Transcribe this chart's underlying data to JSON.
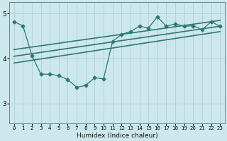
{
  "xlabel": "Humidex (Indice chaleur)",
  "xlim": [
    -0.5,
    23.5
  ],
  "ylim": [
    2.55,
    5.25
  ],
  "yticks": [
    3,
    4,
    5
  ],
  "xtick_labels": [
    "0",
    "1",
    "2",
    "3",
    "4",
    "5",
    "6",
    "7",
    "8",
    "9",
    "10",
    "11",
    "12",
    "13",
    "14",
    "15",
    "16",
    "17",
    "18",
    "19",
    "20",
    "21",
    "22",
    "23"
  ],
  "background_color": "#cce8ec",
  "grid_color": "#aacccc",
  "line_color": "#2d7a6e",
  "lines": [
    {
      "x": [
        0,
        1,
        2,
        3,
        4,
        5,
        6,
        7,
        8,
        9,
        10,
        11,
        12,
        13,
        14,
        15,
        16,
        17,
        18,
        19,
        20,
        21,
        22,
        23
      ],
      "y": [
        4.82,
        4.73,
        4.07,
        3.65,
        3.65,
        3.62,
        3.53,
        3.36,
        3.4,
        3.57,
        3.55,
        4.38,
        4.54,
        4.6,
        4.72,
        4.68,
        4.93,
        4.72,
        4.77,
        4.72,
        4.73,
        4.64,
        4.82,
        4.72
      ],
      "marker": "D",
      "linewidth": 0.9,
      "markersize": 2.5,
      "has_marker": true
    },
    {
      "x": [
        0,
        23
      ],
      "y": [
        3.9,
        4.6
      ],
      "marker": null,
      "linewidth": 1.2,
      "has_marker": false
    },
    {
      "x": [
        0,
        23
      ],
      "y": [
        4.05,
        4.72
      ],
      "marker": null,
      "linewidth": 1.2,
      "has_marker": false
    },
    {
      "x": [
        0,
        23
      ],
      "y": [
        4.2,
        4.85
      ],
      "marker": null,
      "linewidth": 1.2,
      "has_marker": false
    }
  ]
}
